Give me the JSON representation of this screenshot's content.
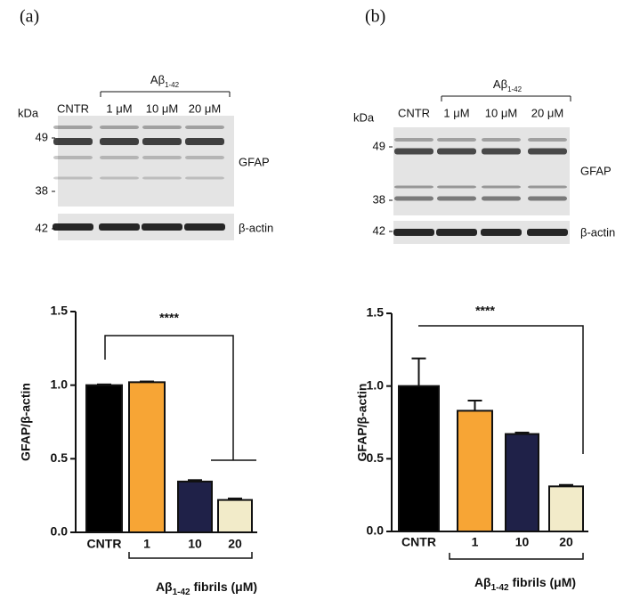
{
  "figure": {
    "panels": [
      {
        "label": "(a)",
        "blot": {
          "treatment": {
            "text": "Aβ",
            "sub": "1-42"
          },
          "unit_label": "kDa",
          "lanes": [
            "CNTR",
            "1 μM",
            "10 μM",
            "20 μM"
          ],
          "markers": [
            "49",
            "38",
            "42"
          ],
          "proteins": [
            "GFAP",
            "β-actin"
          ]
        }
      },
      {
        "label": "(b)",
        "blot": {
          "treatment": {
            "text": "Aβ",
            "sub": "1-42"
          },
          "unit_label": "kDa",
          "lanes": [
            "CNTR",
            "1 μM",
            "10 μM",
            "20 μM"
          ],
          "markers": [
            "49",
            "38",
            "42"
          ],
          "proteins": [
            "GFAP",
            "β-actin"
          ]
        }
      }
    ]
  },
  "chart_data": [
    {
      "type": "bar",
      "ylabel": "GFAP/β-actin",
      "xlabel": {
        "text": "Aβ",
        "sub": "1-42",
        "rest": " fibrils (μM)"
      },
      "categories": [
        "CNTR",
        "1",
        "10",
        "20"
      ],
      "values": [
        1.0,
        1.02,
        0.345,
        0.22
      ],
      "errors": [
        0.005,
        0.005,
        0.01,
        0.01
      ],
      "colors": [
        "#000000",
        "#f7a535",
        "#1f2148",
        "#f2ebc9"
      ],
      "ylim": [
        0,
        1.5
      ],
      "yticks": [
        {
          "value": 0,
          "label": "0.0"
        },
        0.5,
        {
          "value": 1,
          "label": "1.0"
        },
        1.5
      ],
      "annotation": "****"
    },
    {
      "type": "bar",
      "ylabel": "GFAP/β-actin",
      "xlabel": {
        "text": "Aβ",
        "sub": "1-42",
        "rest": " fibrils (μM)"
      },
      "categories": [
        "CNTR",
        "1",
        "10",
        "20"
      ],
      "values": [
        1.0,
        0.83,
        0.67,
        0.31
      ],
      "errors": [
        0.19,
        0.07,
        0.01,
        0.01
      ],
      "colors": [
        "#000000",
        "#f7a535",
        "#1f2148",
        "#f2ebc9"
      ],
      "ylim": [
        0,
        1.5
      ],
      "yticks": [
        {
          "value": 0,
          "label": "0.0"
        },
        0.5,
        {
          "value": 1,
          "label": "1.0"
        },
        1.5
      ],
      "annotation": "****"
    }
  ]
}
